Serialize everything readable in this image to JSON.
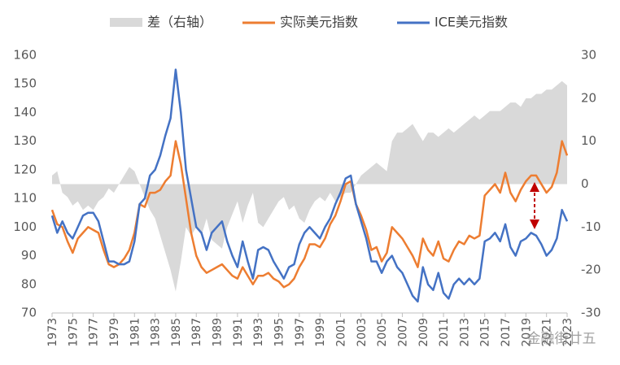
{
  "chart_data": {
    "type": "line",
    "x": [
      1973,
      1973.5,
      1974,
      1974.5,
      1975,
      1975.5,
      1976,
      1976.5,
      1977,
      1977.5,
      1978,
      1978.5,
      1979,
      1979.5,
      1980,
      1980.5,
      1981,
      1981.5,
      1982,
      1982.5,
      1983,
      1983.5,
      1984,
      1984.5,
      1985,
      1985.5,
      1986,
      1986.5,
      1987,
      1987.5,
      1988,
      1988.5,
      1989,
      1989.5,
      1990,
      1990.5,
      1991,
      1991.5,
      1992,
      1992.5,
      1993,
      1993.5,
      1994,
      1994.5,
      1995,
      1995.5,
      1996,
      1996.5,
      1997,
      1997.5,
      1998,
      1998.5,
      1999,
      1999.5,
      2000,
      2000.5,
      2001,
      2001.5,
      2002,
      2002.5,
      2003,
      2003.5,
      2004,
      2004.5,
      2005,
      2005.5,
      2006,
      2006.5,
      2007,
      2007.5,
      2008,
      2008.5,
      2009,
      2009.5,
      2010,
      2010.5,
      2011,
      2011.5,
      2012,
      2012.5,
      2013,
      2013.5,
      2014,
      2014.5,
      2015,
      2015.5,
      2016,
      2016.5,
      2017,
      2017.5,
      2018,
      2018.5,
      2019,
      2019.5,
      2020,
      2020.5,
      2021,
      2021.5,
      2022,
      2022.5,
      2023
    ],
    "series": [
      {
        "name": "差（右轴）",
        "color": "#d9d9d9",
        "axis": "y2",
        "style": "area",
        "values": [
          2,
          3,
          -2,
          -3,
          -5,
          -4,
          -6,
          -5,
          -6,
          -4,
          -3,
          -1,
          -2,
          0,
          2,
          4,
          3,
          0,
          -3,
          -6,
          -8,
          -12,
          -16,
          -20,
          -25,
          -18,
          -10,
          -12,
          -10,
          -12,
          -8,
          -13,
          -14,
          -15,
          -10,
          -7,
          -4,
          -9,
          -5,
          -2,
          -9,
          -10,
          -8,
          -6,
          -4,
          -3,
          -6,
          -5,
          -8,
          -9,
          -6,
          -4,
          -3,
          -4,
          -2,
          -4,
          -3,
          -2,
          -2,
          0,
          2,
          3,
          4,
          5,
          4,
          3,
          10,
          12,
          12,
          13,
          14,
          12,
          10,
          12,
          12,
          11,
          12,
          13,
          12,
          13,
          14,
          15,
          16,
          15,
          16,
          17,
          17,
          17,
          18,
          19,
          19,
          18,
          20,
          20,
          21,
          21,
          22,
          22,
          23,
          24,
          23
        ]
      },
      {
        "name": "实际美元指数",
        "color": "#ed7d31",
        "style": "line",
        "values": [
          106,
          101,
          100,
          95,
          91,
          96,
          98,
          100,
          99,
          98,
          92,
          87,
          86,
          87,
          89,
          92,
          98,
          108,
          107,
          112,
          112,
          113,
          116,
          118,
          130,
          122,
          110,
          98,
          90,
          86,
          84,
          85,
          86,
          87,
          85,
          83,
          82,
          86,
          83,
          80,
          83,
          83,
          84,
          82,
          81,
          79,
          80,
          82,
          86,
          89,
          94,
          94,
          93,
          96,
          101,
          104,
          109,
          115,
          116,
          108,
          104,
          99,
          92,
          93,
          88,
          91,
          100,
          98,
          96,
          93,
          90,
          86,
          96,
          92,
          90,
          95,
          89,
          88,
          92,
          95,
          94,
          97,
          96,
          97,
          111,
          113,
          115,
          112,
          119,
          112,
          109,
          113,
          116,
          118,
          118,
          115,
          112,
          114,
          119,
          130,
          125
        ]
      },
      {
        "name": "ICE美元指数",
        "color": "#4472c4",
        "style": "line",
        "values": [
          104,
          98,
          102,
          98,
          96,
          100,
          104,
          105,
          105,
          102,
          95,
          88,
          88,
          87,
          87,
          88,
          95,
          108,
          110,
          118,
          120,
          125,
          132,
          138,
          155,
          140,
          120,
          110,
          100,
          98,
          92,
          98,
          100,
          102,
          95,
          90,
          86,
          95,
          88,
          82,
          92,
          93,
          92,
          88,
          85,
          82,
          86,
          87,
          94,
          98,
          100,
          98,
          96,
          100,
          103,
          108,
          112,
          117,
          118,
          108,
          102,
          96,
          88,
          88,
          84,
          88,
          90,
          86,
          84,
          80,
          76,
          74,
          86,
          80,
          78,
          84,
          77,
          75,
          80,
          82,
          80,
          82,
          80,
          82,
          95,
          96,
          98,
          95,
          101,
          93,
          90,
          95,
          96,
          98,
          97,
          94,
          90,
          92,
          96,
          106,
          102
        ]
      }
    ],
    "xlim": [
      1973,
      2023
    ],
    "xticks": [
      1973,
      1975,
      1977,
      1979,
      1981,
      1983,
      1985,
      1987,
      1989,
      1991,
      1993,
      1995,
      1997,
      1999,
      2001,
      2003,
      2005,
      2007,
      2009,
      2011,
      2013,
      2015,
      2017,
      2019,
      2021,
      2023
    ],
    "ylim": [
      70,
      160
    ],
    "yticks": [
      70,
      80,
      90,
      100,
      110,
      120,
      130,
      140,
      150,
      160
    ],
    "y2lim": [
      -30,
      30
    ],
    "y2ticks": [
      -30,
      -20,
      -10,
      0,
      10,
      20,
      30
    ],
    "grid": false,
    "legend": "top",
    "watermark": "金融街廿五"
  }
}
